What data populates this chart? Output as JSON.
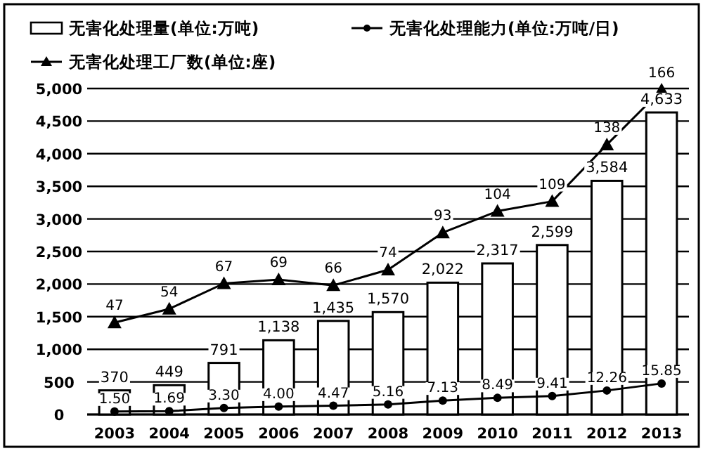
{
  "chart_data": {
    "type": "bar",
    "categories": [
      "2003",
      "2004",
      "2005",
      "2006",
      "2007",
      "2008",
      "2009",
      "2010",
      "2011",
      "2012",
      "2013"
    ],
    "series": [
      {
        "name": "无害化处理量(单位:万吨)",
        "type": "bar",
        "color": "#ffffff",
        "values": [
          370,
          449,
          791,
          1138,
          1435,
          1570,
          2022,
          2317,
          2599,
          3584,
          4633
        ],
        "value_labels": [
          "370",
          "449",
          "791",
          "1,138",
          "1,435",
          "1,570",
          "2,022",
          "2,317",
          "2,599",
          "3,584",
          "4,633"
        ]
      },
      {
        "name": "无害化处理能力(单位:万吨/日)",
        "type": "line",
        "axis": "y2",
        "marker": "circle",
        "color": "#000000",
        "values": [
          1.5,
          1.69,
          3.3,
          4.0,
          4.47,
          5.16,
          7.13,
          8.49,
          9.41,
          12.26,
          15.85
        ],
        "value_labels": [
          "1.50",
          "1.69",
          "3.30",
          "4.00",
          "4.47",
          "5.16",
          "7.13",
          "8.49",
          "9.41",
          "12.26",
          "15.85"
        ]
      },
      {
        "name": "无害化处理工厂数(单位:座)",
        "type": "line",
        "axis": "y2",
        "marker": "triangle",
        "color": "#000000",
        "values": [
          47,
          54,
          67,
          69,
          66,
          74,
          93,
          104,
          109,
          138,
          166
        ],
        "value_labels": [
          "47",
          "54",
          "67",
          "69",
          "66",
          "74",
          "93",
          "104",
          "109",
          "138",
          "166"
        ]
      }
    ],
    "ylim": [
      0,
      5000
    ],
    "yticks": [
      0,
      500,
      {
        "value": 1000,
        "label": "1,000"
      },
      {
        "value": 1500,
        "label": "1,500"
      },
      {
        "value": 2000,
        "label": "2,000"
      },
      {
        "value": 2500,
        "label": "2,500"
      },
      {
        "value": 3000,
        "label": "3,000"
      },
      {
        "value": 3500,
        "label": "3,500"
      },
      {
        "value": 4000,
        "label": "4,000"
      },
      {
        "value": 4500,
        "label": "4,500"
      },
      {
        "value": 5000,
        "label": "5,000"
      }
    ],
    "y2lim": [
      0,
      166.7
    ],
    "grid": "y",
    "legend": "top"
  }
}
